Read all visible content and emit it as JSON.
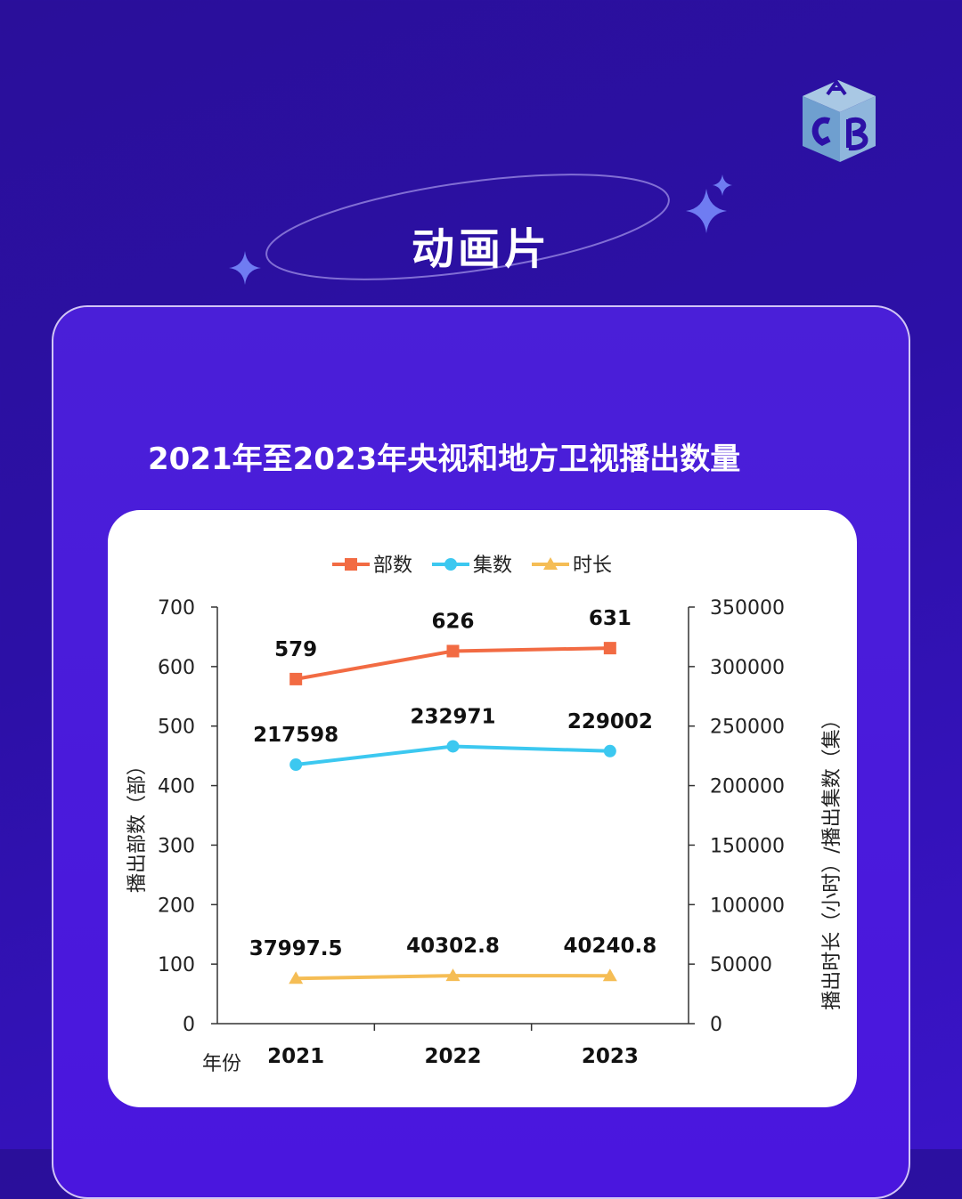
{
  "page": {
    "title": "动画片"
  },
  "chart_data": {
    "type": "line",
    "title": "2021年至2023年央视和地方卫视播出数量",
    "x_label": "年份",
    "y_left_label": "播出部数（部）",
    "y_right_label": "播出时长（小时）/播出集数（集）",
    "categories": [
      "2021",
      "2022",
      "2023"
    ],
    "y_left_range": [
      0,
      700
    ],
    "y_left_ticks": [
      "0",
      "100",
      "200",
      "300",
      "400",
      "500",
      "600",
      "700"
    ],
    "y_right_range": [
      0,
      350000
    ],
    "y_right_ticks": [
      "0",
      "50000",
      "100000",
      "150000",
      "200000",
      "250000",
      "300000",
      "350000"
    ],
    "legend_position": "top",
    "grid": false,
    "series": [
      {
        "name": "部数",
        "axis": "left",
        "color": "#f26b43",
        "marker": "square",
        "values": [
          579,
          626,
          631
        ],
        "labels": [
          "579",
          "626",
          "631"
        ]
      },
      {
        "name": "集数",
        "axis": "right",
        "color": "#3cc8f0",
        "marker": "circle",
        "values": [
          217598,
          232971,
          229002
        ],
        "labels": [
          "217598",
          "232971",
          "229002"
        ]
      },
      {
        "name": "时长",
        "axis": "right",
        "color": "#f5bd55",
        "marker": "triangle",
        "values": [
          37997.5,
          40302.8,
          40240.8
        ],
        "labels": [
          "37997.5",
          "40302.8",
          "40240.8"
        ]
      }
    ]
  }
}
